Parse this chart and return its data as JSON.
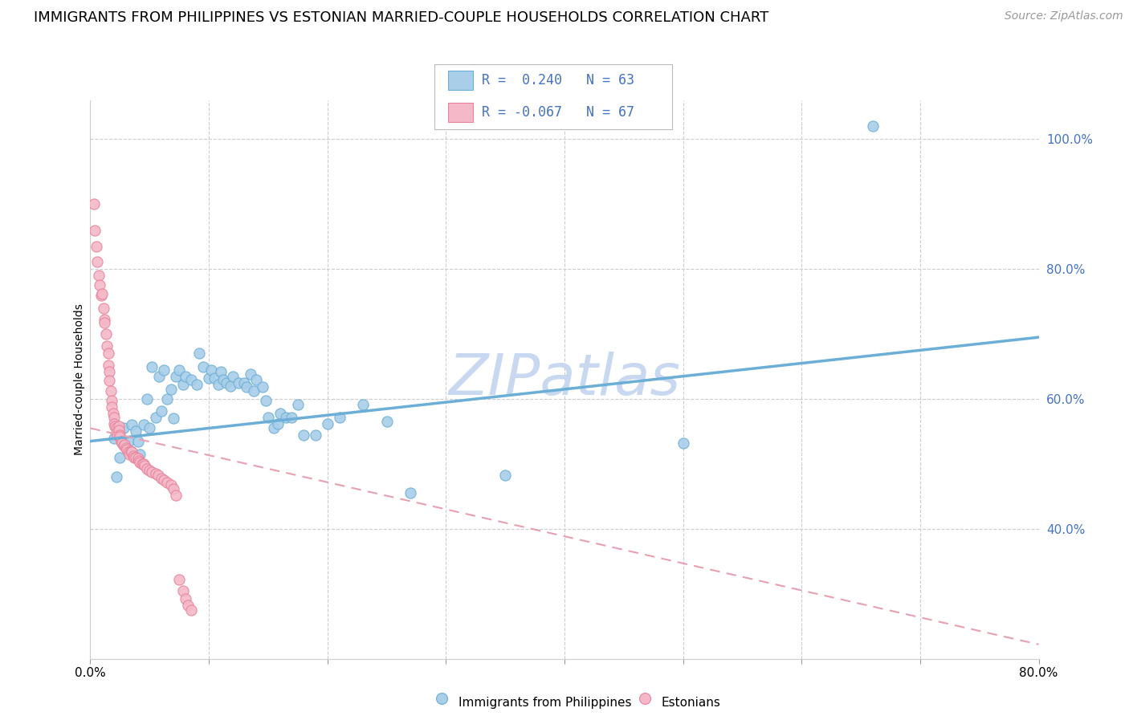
{
  "title": "IMMIGRANTS FROM PHILIPPINES VS ESTONIAN MARRIED-COUPLE HOUSEHOLDS CORRELATION CHART",
  "source": "Source: ZipAtlas.com",
  "ylabel": "Married-couple Households",
  "watermark": "ZIPatlas",
  "xlim": [
    0.0,
    0.8
  ],
  "ylim": [
    0.2,
    1.06
  ],
  "xticks": [
    0.0,
    0.1,
    0.2,
    0.3,
    0.4,
    0.5,
    0.6,
    0.7,
    0.8
  ],
  "xticklabels": [
    "0.0%",
    "",
    "",
    "",
    "",
    "",
    "",
    "",
    "80.0%"
  ],
  "yticks": [
    0.4,
    0.6,
    0.8,
    1.0
  ],
  "yticklabels": [
    "40.0%",
    "60.0%",
    "80.0%",
    "100.0%"
  ],
  "color_blue": "#A8CEE8",
  "color_blue_edge": "#6BAED6",
  "color_pink": "#F4B8C8",
  "color_pink_edge": "#E8829A",
  "color_blue_text": "#4472C4",
  "color_pink_line": "#E8A0B0",
  "blue_scatter_x": [
    0.02,
    0.022,
    0.025,
    0.028,
    0.03,
    0.032,
    0.035,
    0.038,
    0.04,
    0.042,
    0.045,
    0.048,
    0.05,
    0.052,
    0.055,
    0.058,
    0.06,
    0.062,
    0.065,
    0.068,
    0.07,
    0.072,
    0.075,
    0.078,
    0.08,
    0.085,
    0.09,
    0.092,
    0.095,
    0.1,
    0.102,
    0.105,
    0.108,
    0.11,
    0.112,
    0.115,
    0.118,
    0.12,
    0.125,
    0.13,
    0.132,
    0.135,
    0.138,
    0.14,
    0.145,
    0.148,
    0.15,
    0.155,
    0.158,
    0.16,
    0.165,
    0.17,
    0.175,
    0.18,
    0.19,
    0.2,
    0.21,
    0.23,
    0.25,
    0.27,
    0.35,
    0.5,
    0.66
  ],
  "blue_scatter_y": [
    0.54,
    0.48,
    0.51,
    0.555,
    0.525,
    0.535,
    0.56,
    0.55,
    0.535,
    0.515,
    0.56,
    0.6,
    0.555,
    0.65,
    0.572,
    0.635,
    0.582,
    0.645,
    0.6,
    0.615,
    0.57,
    0.635,
    0.645,
    0.622,
    0.635,
    0.63,
    0.622,
    0.67,
    0.65,
    0.632,
    0.645,
    0.632,
    0.622,
    0.642,
    0.63,
    0.625,
    0.62,
    0.635,
    0.625,
    0.625,
    0.618,
    0.638,
    0.612,
    0.63,
    0.618,
    0.598,
    0.572,
    0.555,
    0.562,
    0.578,
    0.572,
    0.572,
    0.592,
    0.545,
    0.545,
    0.562,
    0.572,
    0.592,
    0.565,
    0.455,
    0.482,
    0.532,
    1.02
  ],
  "pink_scatter_x": [
    0.003,
    0.004,
    0.005,
    0.006,
    0.007,
    0.008,
    0.009,
    0.01,
    0.011,
    0.012,
    0.012,
    0.013,
    0.014,
    0.015,
    0.015,
    0.016,
    0.016,
    0.017,
    0.018,
    0.018,
    0.019,
    0.02,
    0.02,
    0.021,
    0.022,
    0.022,
    0.023,
    0.024,
    0.024,
    0.025,
    0.025,
    0.026,
    0.026,
    0.027,
    0.028,
    0.029,
    0.03,
    0.031,
    0.032,
    0.033,
    0.034,
    0.035,
    0.036,
    0.037,
    0.038,
    0.04,
    0.041,
    0.042,
    0.044,
    0.045,
    0.046,
    0.048,
    0.05,
    0.052,
    0.055,
    0.057,
    0.06,
    0.062,
    0.065,
    0.068,
    0.07,
    0.072,
    0.075,
    0.078,
    0.08,
    0.082,
    0.085
  ],
  "pink_scatter_y": [
    0.9,
    0.86,
    0.835,
    0.812,
    0.79,
    0.775,
    0.76,
    0.762,
    0.74,
    0.722,
    0.718,
    0.7,
    0.682,
    0.67,
    0.652,
    0.642,
    0.628,
    0.612,
    0.598,
    0.588,
    0.578,
    0.572,
    0.562,
    0.558,
    0.555,
    0.548,
    0.545,
    0.558,
    0.552,
    0.545,
    0.542,
    0.535,
    0.535,
    0.532,
    0.528,
    0.53,
    0.525,
    0.522,
    0.518,
    0.515,
    0.52,
    0.518,
    0.512,
    0.51,
    0.51,
    0.508,
    0.505,
    0.502,
    0.5,
    0.5,
    0.498,
    0.492,
    0.49,
    0.488,
    0.485,
    0.482,
    0.478,
    0.475,
    0.472,
    0.468,
    0.462,
    0.452,
    0.322,
    0.305,
    0.292,
    0.282,
    0.275
  ],
  "blue_trend_x": [
    0.0,
    0.8
  ],
  "blue_trend_y": [
    0.535,
    0.695
  ],
  "pink_trend_x": [
    0.0,
    0.8
  ],
  "pink_trend_y": [
    0.555,
    0.222
  ],
  "title_fontsize": 13,
  "source_fontsize": 10,
  "label_fontsize": 10,
  "tick_fontsize": 11,
  "watermark_fontsize": 52,
  "watermark_color": "#C8D8F0",
  "background_color": "#FFFFFF",
  "grid_color": "#CCCCCC"
}
